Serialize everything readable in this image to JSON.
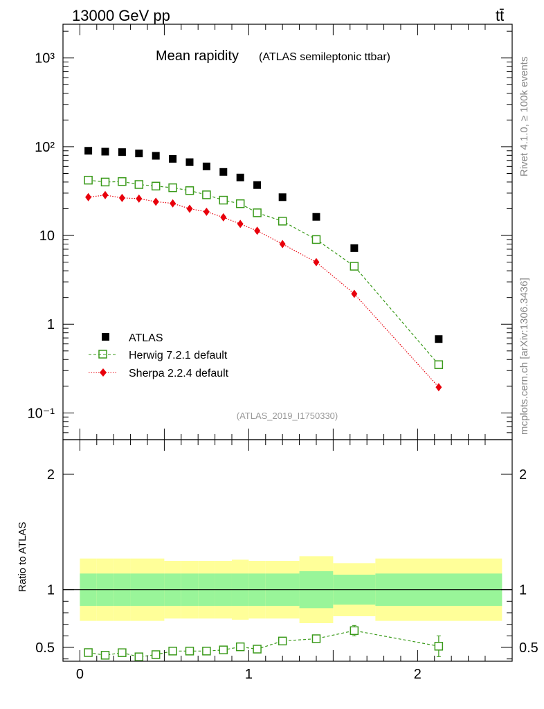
{
  "header": {
    "energy_label": "13000 GeV pp",
    "process_label": "tt̄"
  },
  "side_text": {
    "rivet": "Rivet 4.1.0, ≥ 100k events",
    "site": "mcplots.cern.ch [arXiv:1306.3436]"
  },
  "colors": {
    "atlas": "#000000",
    "herwig": "#3a9a1a",
    "sherpa": "#e8000b",
    "band_inner": "#99f599",
    "band_outer": "#ffff99"
  },
  "chart_data": [
    {
      "type": "scatter",
      "title": "Mean rapidity",
      "subtitle": "(ATLAS semileptonic ttbar)",
      "watermark": "(ATLAS_2019_I1750330)",
      "yscale": "log",
      "xlim": [
        -0.1,
        2.56
      ],
      "ylim": [
        0.05,
        2400
      ],
      "ytick_labels": [
        "10⁻¹",
        "1",
        "10",
        "10²",
        "10³"
      ],
      "ytick_values": [
        0.1,
        1,
        10,
        100,
        1000
      ],
      "legend_position": "bottom-left",
      "legend": [
        "ATLAS",
        "Herwig 7.2.1 default",
        "Sherpa 2.2.4 default"
      ],
      "x": [
        0.05,
        0.15,
        0.25,
        0.35,
        0.45,
        0.55,
        0.65,
        0.75,
        0.85,
        0.95,
        1.05,
        1.2,
        1.4,
        1.625,
        2.125
      ],
      "series": [
        {
          "name": "ATLAS",
          "marker": "square",
          "values": [
            90,
            88,
            87,
            84,
            79,
            73,
            67,
            60,
            52,
            45,
            37,
            27,
            16.2,
            7.2,
            0.68
          ]
        },
        {
          "name": "Herwig 7.2.1 default",
          "marker": "open-square",
          "line": "dashed",
          "values": [
            42,
            40,
            40.5,
            37.5,
            36,
            34.5,
            32,
            28.7,
            25,
            22.8,
            18,
            14.5,
            9,
            4.5,
            0.35
          ]
        },
        {
          "name": "Sherpa 2.2.4 default",
          "marker": "diamond",
          "line": "dotted",
          "values": [
            27,
            28.5,
            26.5,
            26,
            24,
            23,
            20,
            18.5,
            16,
            13.5,
            11.3,
            8,
            5,
            2.2,
            0.195
          ]
        }
      ]
    },
    {
      "type": "scatter",
      "ylabel": "Ratio to ATLAS",
      "xlim": [
        -0.1,
        2.56
      ],
      "ylim": [
        0.38,
        2.3
      ],
      "xtick_labels": [
        "0",
        "1",
        "2"
      ],
      "xtick_values": [
        0,
        1,
        2
      ],
      "ytick_labels": [
        "0.5",
        "1",
        "2"
      ],
      "ytick_values": [
        0.5,
        1,
        2
      ],
      "bin_edges": [
        0,
        0.1,
        0.2,
        0.3,
        0.4,
        0.5,
        0.6,
        0.7,
        0.8,
        0.9,
        1.0,
        1.1,
        1.3,
        1.5,
        1.75,
        2.5
      ],
      "band_inner_halfwidth": [
        0.14,
        0.14,
        0.14,
        0.14,
        0.14,
        0.14,
        0.14,
        0.14,
        0.14,
        0.14,
        0.14,
        0.14,
        0.16,
        0.13,
        0.14
      ],
      "band_outer_halfwidth": [
        0.27,
        0.27,
        0.27,
        0.27,
        0.27,
        0.25,
        0.25,
        0.25,
        0.25,
        0.26,
        0.25,
        0.25,
        0.29,
        0.23,
        0.27
      ],
      "series": [
        {
          "name": "Herwig 7.2.1 default",
          "values": [
            0.455,
            0.432,
            0.454,
            0.418,
            0.437,
            0.468,
            0.468,
            0.468,
            0.478,
            0.505,
            0.485,
            0.555,
            0.575,
            0.645,
            0.51
          ],
          "errors": [
            0.012,
            0.012,
            0.012,
            0.012,
            0.012,
            0.015,
            0.015,
            0.018,
            0.02,
            0.025,
            0.03,
            0.025,
            0.03,
            0.045,
            0.09
          ]
        }
      ]
    }
  ]
}
